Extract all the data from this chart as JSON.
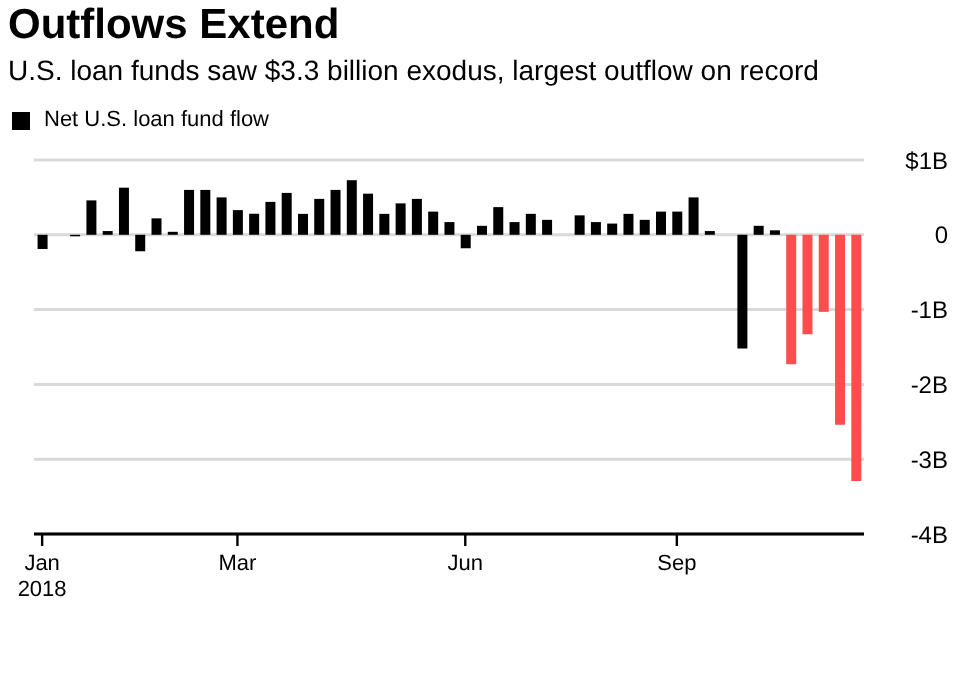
{
  "chart_data": {
    "type": "bar",
    "title": "Outflows Extend",
    "subtitle": "U.S. loan funds saw $3.3 billion exodus, largest outflow on record",
    "categories": [
      "Jan 2018",
      null,
      null,
      null,
      null,
      null,
      null,
      null,
      null,
      null,
      null,
      null,
      "Mar",
      null,
      null,
      null,
      null,
      null,
      null,
      null,
      null,
      null,
      null,
      null,
      null,
      null,
      "Jun",
      null,
      null,
      null,
      null,
      null,
      null,
      null,
      null,
      null,
      null,
      null,
      null,
      "Sep",
      null,
      null,
      null,
      null,
      null,
      null,
      null,
      null,
      null,
      null,
      null
    ],
    "series": [
      {
        "name": "Net U.S. loan fund flow",
        "color": "#000000",
        "values": [
          -0.19,
          0,
          -0.02,
          0.46,
          0.05,
          0.63,
          -0.22,
          0.22,
          0.04,
          0.6,
          0.6,
          0.5,
          0.33,
          0.28,
          0.44,
          0.56,
          0.28,
          0.48,
          0.6,
          0.73,
          0.55,
          0.28,
          0.42,
          0.48,
          0.31,
          0.17,
          -0.18,
          0.12,
          0.37,
          0.17,
          0.28,
          0.2,
          0,
          0.26,
          0.17,
          0.15,
          0.28,
          0.2,
          0.31,
          0.31,
          0.5,
          0.05,
          0,
          -1.52,
          0.12,
          0.06,
          -1.73,
          -1.33,
          -1.03,
          -2.54,
          -3.29
        ],
        "colors": [
          "#000000",
          "#000000",
          "#000000",
          "#000000",
          "#000000",
          "#000000",
          "#000000",
          "#000000",
          "#000000",
          "#000000",
          "#000000",
          "#000000",
          "#000000",
          "#000000",
          "#000000",
          "#000000",
          "#000000",
          "#000000",
          "#000000",
          "#000000",
          "#000000",
          "#000000",
          "#000000",
          "#000000",
          "#000000",
          "#000000",
          "#000000",
          "#000000",
          "#000000",
          "#000000",
          "#000000",
          "#000000",
          "#000000",
          "#000000",
          "#000000",
          "#000000",
          "#000000",
          "#000000",
          "#000000",
          "#000000",
          "#000000",
          "#000000",
          "#000000",
          "#000000",
          "#000000",
          "#000000",
          "#ff4d4d",
          "#ff4d4d",
          "#ff4d4d",
          "#ff4d4d",
          "#ff4d4d"
        ]
      }
    ],
    "ylim": [
      -4,
      1
    ],
    "yticks": [
      {
        "value": 1,
        "label": "$1B"
      },
      0,
      {
        "value": -1,
        "label": "-1B"
      },
      {
        "value": -2,
        "label": "-2B"
      },
      {
        "value": -3,
        "label": "-3B"
      },
      {
        "value": -4,
        "label": "-4B"
      }
    ],
    "grid": "y",
    "legend": "top left"
  }
}
